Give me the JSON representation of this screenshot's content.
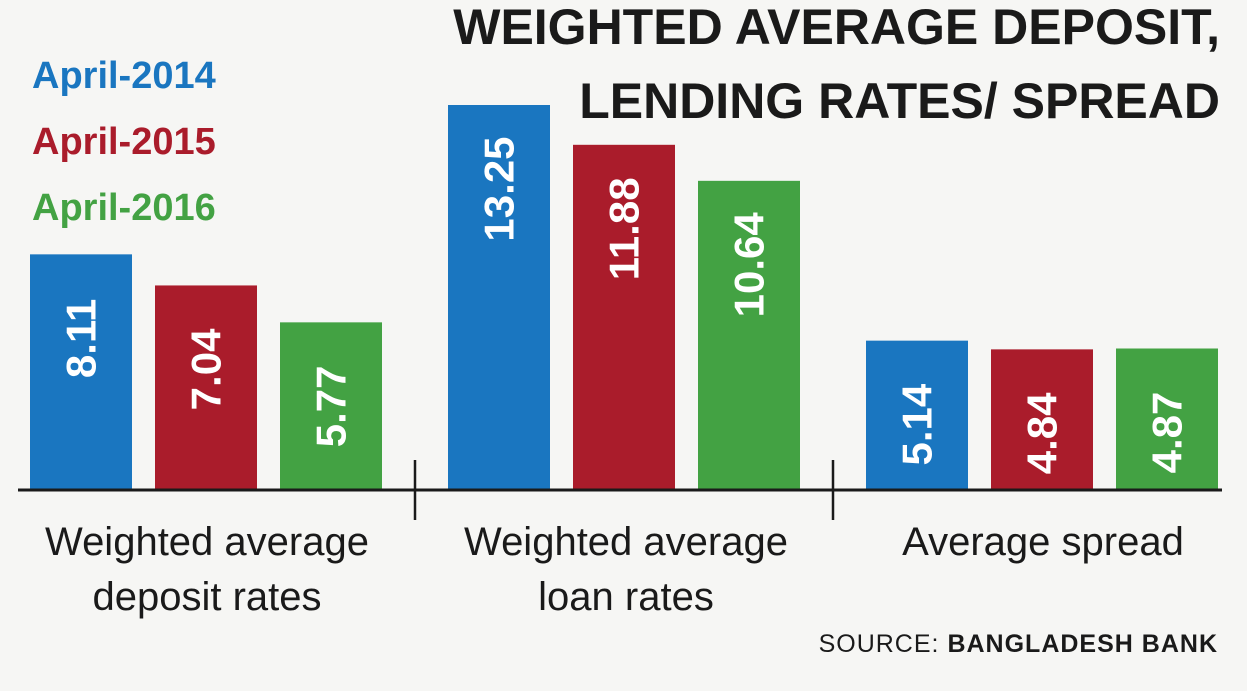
{
  "chart_data": {
    "type": "bar",
    "title": [
      "WEIGHTED AVERAGE DEPOSIT,",
      "LENDING RATES/ SPREAD"
    ],
    "categories": [
      [
        "Weighted average",
        "deposit rates"
      ],
      [
        "Weighted average",
        "loan rates"
      ],
      [
        "Average spread"
      ]
    ],
    "series": [
      {
        "name": "April-2014",
        "color": "#1a76c0",
        "values": [
          8.11,
          13.25,
          5.14
        ],
        "labels": [
          "8.11",
          "13.25",
          "5.14"
        ]
      },
      {
        "name": "April-2015",
        "color": "#aa1c2b",
        "values": [
          7.04,
          11.88,
          4.84
        ],
        "labels": [
          "7.04",
          "11.88",
          "4.84"
        ]
      },
      {
        "name": "April-2016",
        "color": "#43a243",
        "values": [
          5.77,
          10.64,
          4.87
        ],
        "labels": [
          "5.77",
          "10.64",
          "4.87"
        ]
      }
    ],
    "ylim": [
      0,
      13.25
    ],
    "legend_position": "top-left",
    "grid": false,
    "source_prefix": "SOURCE: ",
    "source_name": "BANGLADESH BANK"
  }
}
